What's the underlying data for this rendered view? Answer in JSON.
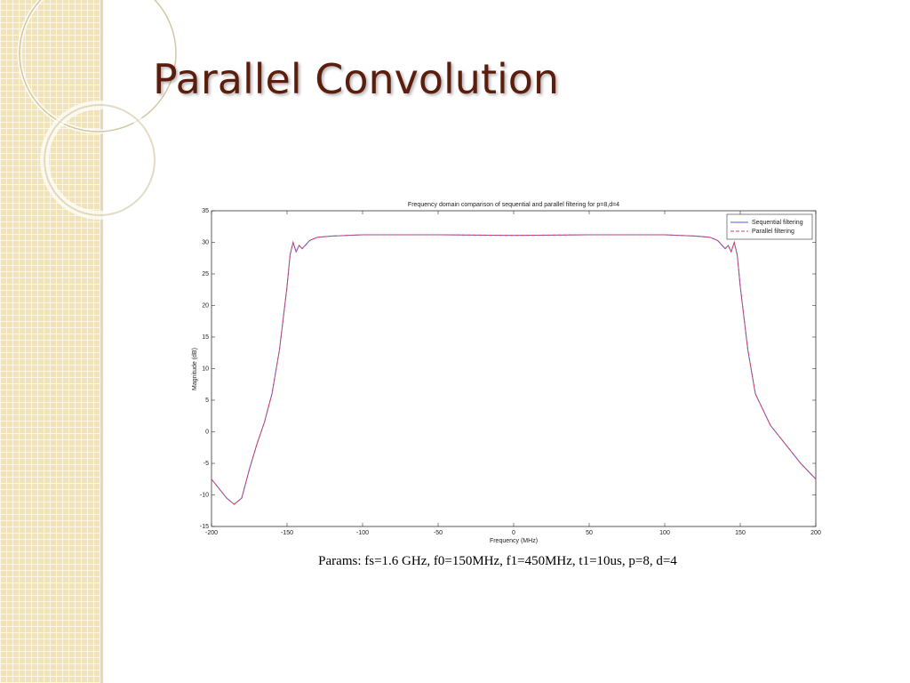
{
  "slide_title": "Parallel Convolution",
  "caption": "Params: fs=1.6 GHz, f0=150MHz,  f1=450MHz, t1=10us, p=8, d=4",
  "chart_data": {
    "type": "line",
    "title": "Frequency domain comparison of sequential and parallel filtering for p=8,d=4",
    "x_label": "Frequency (MHz)",
    "y_label": "Magnitude (dB)",
    "x": [
      -200,
      -190,
      -185,
      -180,
      -175,
      -170,
      -165,
      -160,
      -155,
      -150,
      -148,
      -146,
      -144,
      -142,
      -140,
      -135,
      -130,
      -120,
      -100,
      -50,
      0,
      50,
      100,
      120,
      130,
      135,
      140,
      142,
      144,
      146,
      148,
      150,
      155,
      160,
      170,
      180,
      190,
      200
    ],
    "series": [
      {
        "name": "Sequential filtering",
        "color": "#4b5fd6",
        "linestyle": "solid",
        "values": [
          -7.5,
          -10.5,
          -11.5,
          -10.5,
          -6,
          -2,
          1.5,
          6,
          13,
          23,
          28,
          30,
          28.5,
          29.5,
          29,
          30.3,
          30.8,
          31,
          31.2,
          31.2,
          31.1,
          31.2,
          31.2,
          31,
          30.8,
          30.3,
          29,
          29.5,
          28.5,
          30,
          28,
          23,
          13,
          6,
          1,
          -2,
          -5,
          -7.5
        ]
      },
      {
        "name": "Parallel filtering",
        "color": "#e0405a",
        "linestyle": "dashed",
        "values": [
          -7.5,
          -10.5,
          -11.5,
          -10.5,
          -6,
          -2,
          1.5,
          6,
          13,
          23,
          28,
          30,
          28.5,
          29.5,
          29,
          30.3,
          30.8,
          31,
          31.2,
          31.2,
          31.1,
          31.2,
          31.2,
          31,
          30.8,
          30.3,
          29,
          29.5,
          28.5,
          30,
          28,
          23,
          13,
          6,
          1,
          -2,
          -5,
          -7.5
        ]
      }
    ],
    "xlim": [
      -200,
      200
    ],
    "xticks": [
      -200,
      -150,
      -100,
      -50,
      0,
      50,
      100,
      150,
      200
    ],
    "ylim": [
      -15,
      35
    ],
    "yticks": [
      -15,
      -10,
      -5,
      0,
      5,
      10,
      15,
      20,
      25,
      30,
      35
    ],
    "grid": false,
    "legend": "northeast"
  }
}
